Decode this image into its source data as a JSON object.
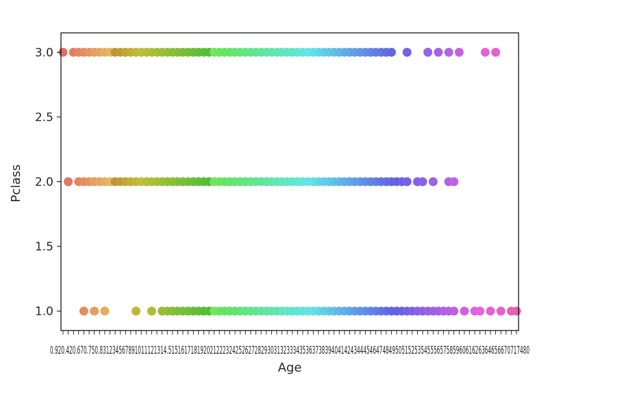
{
  "chart_data": {
    "type": "scatter",
    "title": "",
    "xlabel": "Age",
    "ylabel": "Pclass",
    "x_axis": "categorical",
    "x_categories_count": 88,
    "ylim": [
      0.85,
      3.15
    ],
    "y_ticks": [
      "1.0",
      "1.5",
      "2.0",
      "2.5",
      "3.0"
    ],
    "x_tick_text": "0.920.420.670.750.831234567891011121314.51516171819202122232425262728293031323334353637383940414243444546474849505152535455565758596061626364656670717480",
    "grid": false,
    "legend": "none",
    "palette": "husl",
    "series": [
      {
        "y": 3.0,
        "x_index": [
          0,
          2,
          3,
          4,
          5,
          6,
          7,
          8,
          9,
          10,
          11,
          12,
          13,
          14,
          15,
          16,
          17,
          18,
          19,
          20,
          21,
          22,
          23,
          24,
          25,
          26,
          27,
          28,
          29,
          30,
          31,
          32,
          33,
          34,
          35,
          36,
          37,
          38,
          39,
          40,
          41,
          42,
          43,
          44,
          45,
          46,
          47,
          48,
          49,
          50,
          51,
          52,
          53,
          54,
          55,
          56,
          57,
          58,
          59,
          60,
          61,
          62,
          63,
          66,
          70,
          72,
          74,
          76,
          81,
          83
        ]
      },
      {
        "y": 2.0,
        "x_index": [
          1,
          3,
          4,
          5,
          6,
          7,
          8,
          9,
          10,
          11,
          12,
          13,
          14,
          15,
          16,
          17,
          18,
          19,
          20,
          21,
          22,
          23,
          24,
          25,
          26,
          27,
          28,
          29,
          30,
          31,
          32,
          33,
          34,
          35,
          36,
          37,
          38,
          39,
          40,
          41,
          42,
          43,
          44,
          45,
          46,
          47,
          48,
          49,
          50,
          51,
          52,
          53,
          54,
          55,
          56,
          57,
          58,
          59,
          60,
          61,
          62,
          63,
          64,
          65,
          66,
          68,
          69,
          71,
          74,
          75
        ]
      },
      {
        "y": 1.0,
        "x_index": [
          4,
          6,
          8,
          14,
          17,
          19,
          20,
          21,
          22,
          23,
          24,
          25,
          26,
          27,
          28,
          29,
          30,
          31,
          32,
          33,
          34,
          35,
          36,
          37,
          38,
          39,
          40,
          41,
          42,
          43,
          44,
          45,
          46,
          47,
          48,
          49,
          50,
          51,
          52,
          53,
          54,
          55,
          56,
          57,
          58,
          59,
          60,
          61,
          62,
          63,
          64,
          65,
          66,
          67,
          68,
          69,
          70,
          71,
          72,
          73,
          74,
          75,
          77,
          79,
          80,
          82,
          84,
          86,
          87
        ]
      }
    ]
  }
}
